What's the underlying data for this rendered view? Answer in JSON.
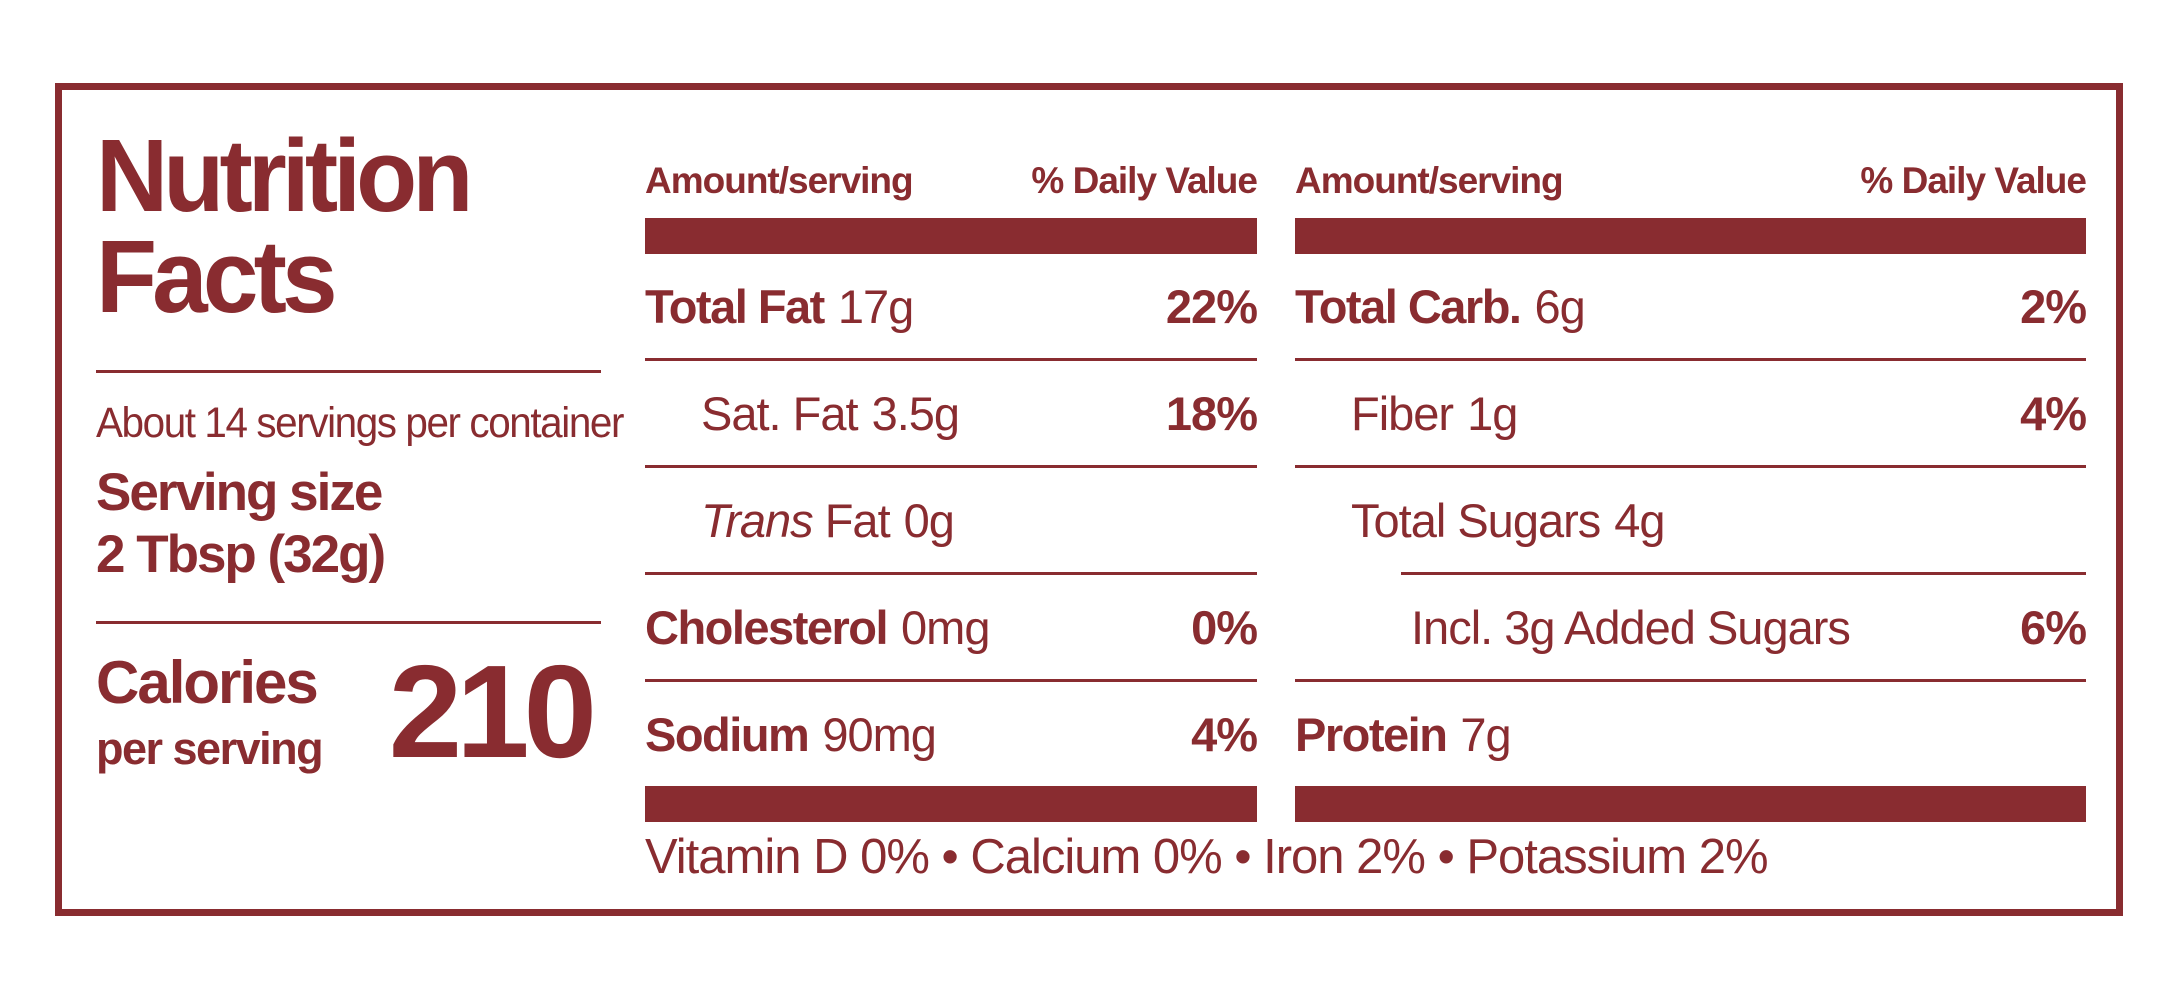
{
  "label": {
    "accent_color": "#892C30",
    "title_line1": "Nutrition",
    "title_line2": "Facts",
    "servings_per_container": "About 14 servings per container",
    "serving_size_label": "Serving size",
    "serving_size_value": "2 Tbsp (32g)",
    "calories_label": "Calories",
    "calories_sublabel": "per serving",
    "calories_value": "210",
    "columns": [
      {
        "header_amount": "Amount/serving",
        "header_dv": "% Daily Value",
        "rows": [
          {
            "name": "Total Fat",
            "amount": "17g",
            "dv": "22%"
          },
          {
            "name": "Sat. Fat",
            "amount": "3.5g",
            "dv": "18%"
          },
          {
            "prefix_italic": "Trans",
            "name": " Fat",
            "amount": "0g",
            "dv": ""
          },
          {
            "name": "Cholesterol",
            "amount": "0mg",
            "dv": "0%"
          },
          {
            "name": "Sodium",
            "amount": "90mg",
            "dv": "4%"
          }
        ]
      },
      {
        "header_amount": "Amount/serving",
        "header_dv": "% Daily Value",
        "rows": [
          {
            "name": "Total Carb.",
            "amount": "6g",
            "dv": "2%"
          },
          {
            "name": "Fiber",
            "amount": "1g",
            "dv": "4%"
          },
          {
            "name": "Total Sugars",
            "amount": "4g",
            "dv": ""
          },
          {
            "name": "Incl. 3g Added Sugars",
            "amount": "",
            "dv": "6%"
          },
          {
            "name": "Protein",
            "amount": "7g",
            "dv": ""
          }
        ]
      }
    ],
    "micronutrients": "Vitamin D 0% • Calcium 0% • Iron 2% • Potassium 2%"
  }
}
